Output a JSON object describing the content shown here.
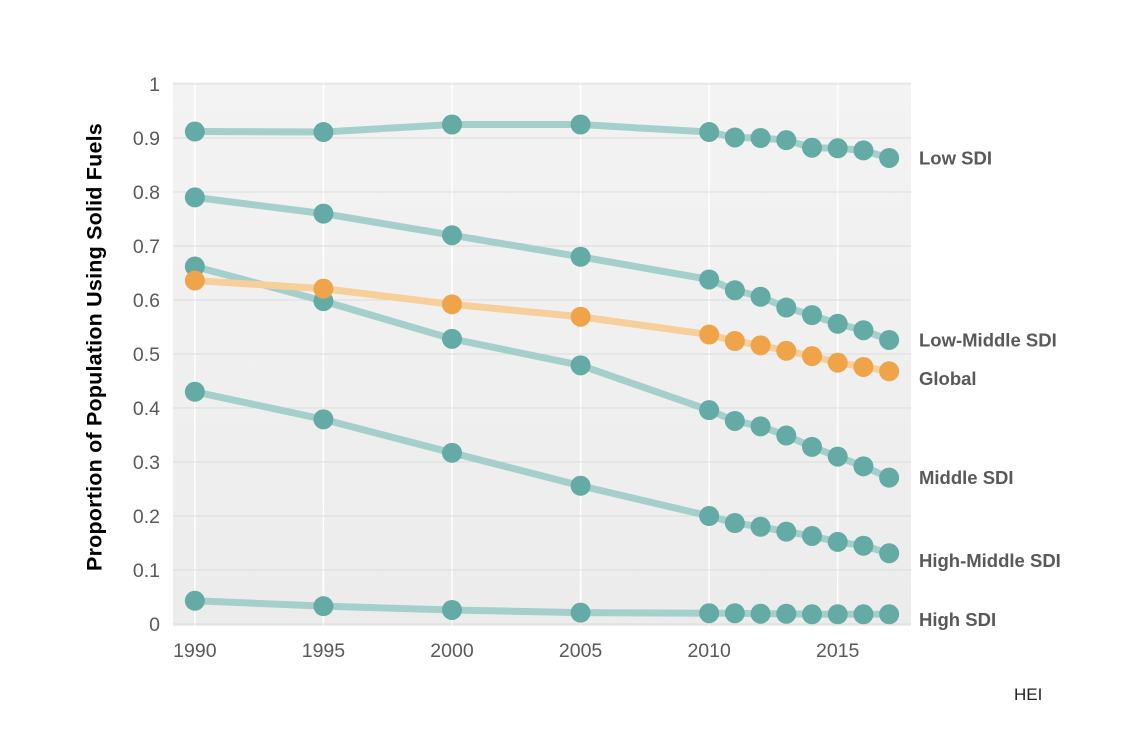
{
  "page": {
    "background": "#ffffff",
    "attribution": "HEI"
  },
  "chart_data": {
    "type": "line",
    "title": "",
    "xlabel": "",
    "ylabel": "Proportion of Population Using Solid Fuels",
    "x": [
      1990,
      1995,
      2000,
      2005,
      2010,
      2011,
      2012,
      2013,
      2014,
      2015,
      2016,
      2017
    ],
    "x_ticks": [
      1990,
      1995,
      2000,
      2005,
      2010,
      2015
    ],
    "y_ticks": [
      0,
      0.1,
      0.2,
      0.3,
      0.4,
      0.5,
      0.6,
      0.7,
      0.8,
      0.9,
      1
    ],
    "xlim": [
      1989.15,
      2017.85
    ],
    "ylim": [
      0,
      1
    ],
    "grid": true,
    "legend_position": "right-end-labels",
    "colors": {
      "teal_point": "#64aba5",
      "teal_line": "#a5cfcb",
      "orange_point": "#f0a44a",
      "orange_line": "#f6cf9b",
      "plot_bg_top": "#f3f3f3",
      "plot_bg_bottom": "#ececec",
      "grid_horizontal": "#dcdcdc",
      "grid_vertical": "#ffffff",
      "tick_text": "#58595b",
      "label_text": "#58595b"
    },
    "series": [
      {
        "name": "Low SDI",
        "point_color": "#64aba5",
        "line_color": "#a5cfcb",
        "z": 0,
        "label_dy": 0,
        "values": [
          0.912,
          0.911,
          0.925,
          0.925,
          0.911,
          0.901,
          0.9,
          0.896,
          0.882,
          0.881,
          0.877,
          0.863
        ]
      },
      {
        "name": "Low-Middle SDI",
        "point_color": "#64aba5",
        "line_color": "#a5cfcb",
        "z": 0,
        "label_dy": 0,
        "values": [
          0.79,
          0.76,
          0.72,
          0.68,
          0.638,
          0.618,
          0.606,
          0.586,
          0.572,
          0.556,
          0.544,
          0.526
        ]
      },
      {
        "name": "Global",
        "point_color": "#f0a44a",
        "line_color": "#f6cf9b",
        "z": 1,
        "label_dy": 7,
        "values": [
          0.636,
          0.621,
          0.592,
          0.569,
          0.536,
          0.524,
          0.516,
          0.506,
          0.496,
          0.484,
          0.476,
          0.468
        ]
      },
      {
        "name": "Middle SDI",
        "point_color": "#64aba5",
        "line_color": "#a5cfcb",
        "z": 0,
        "label_dy": 0,
        "values": [
          0.662,
          0.598,
          0.528,
          0.479,
          0.396,
          0.376,
          0.366,
          0.349,
          0.328,
          0.31,
          0.292,
          0.271
        ]
      },
      {
        "name": "High-Middle SDI",
        "point_color": "#64aba5",
        "line_color": "#a5cfcb",
        "z": 0,
        "label_dy": 7,
        "values": [
          0.43,
          0.379,
          0.317,
          0.256,
          0.2,
          0.187,
          0.18,
          0.171,
          0.163,
          0.152,
          0.145,
          0.131
        ]
      },
      {
        "name": "High SDI",
        "point_color": "#64aba5",
        "line_color": "#a5cfcb",
        "z": 0,
        "label_dy": 5,
        "values": [
          0.043,
          0.033,
          0.026,
          0.021,
          0.02,
          0.02,
          0.019,
          0.019,
          0.018,
          0.018,
          0.018,
          0.018
        ]
      }
    ]
  }
}
